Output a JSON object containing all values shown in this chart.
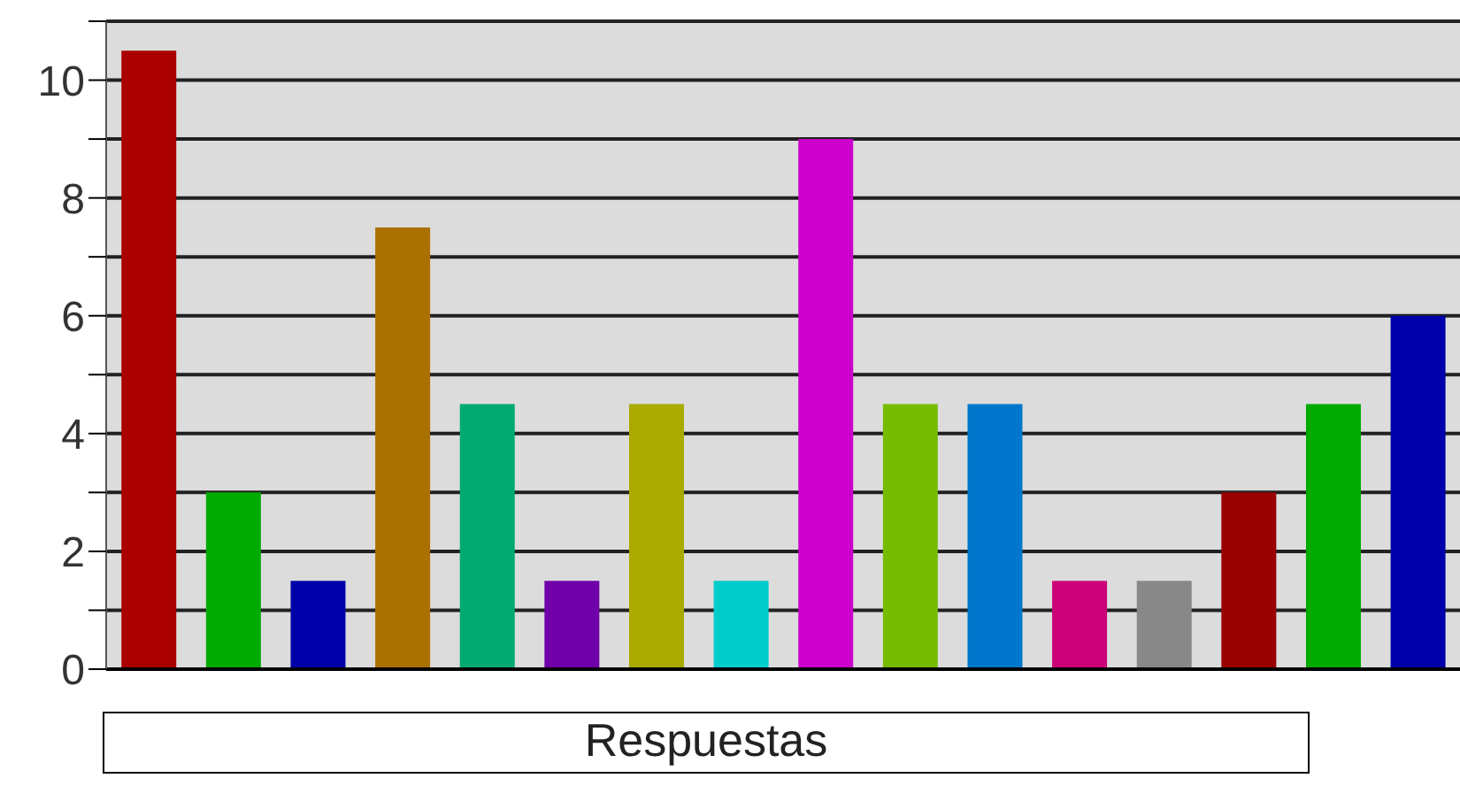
{
  "chart_data": {
    "type": "bar",
    "xlabel": "Respuestas",
    "categories": [
      null,
      null,
      null,
      null,
      null,
      null,
      null,
      null,
      null,
      null,
      null,
      null,
      null,
      null,
      null,
      null
    ],
    "values": [
      10.5,
      3,
      1.5,
      7.5,
      4.5,
      1.5,
      4.5,
      1.5,
      9,
      4.5,
      4.5,
      1.5,
      1.5,
      3,
      4.5,
      6
    ],
    "colors": [
      "#aa0000",
      "#00aa00",
      "#0000aa",
      "#aa7000",
      "#00aa70",
      "#7000aa",
      "#aaaa00",
      "#00cccc",
      "#cc00cc",
      "#77bb00",
      "#0077cc",
      "#cc0077",
      "#888888",
      "#990000",
      "#00aa00",
      "#0000aa"
    ],
    "ylim": [
      0,
      11
    ],
    "yticks": [
      0,
      {
        "value": 1,
        "label": null
      },
      2,
      {
        "value": 3,
        "label": null
      },
      4,
      {
        "value": 5,
        "label": null
      },
      6,
      {
        "value": 7,
        "label": null
      },
      8,
      {
        "value": 9,
        "label": null
      },
      10,
      {
        "value": 11,
        "label": null
      }
    ],
    "grid": "y"
  }
}
